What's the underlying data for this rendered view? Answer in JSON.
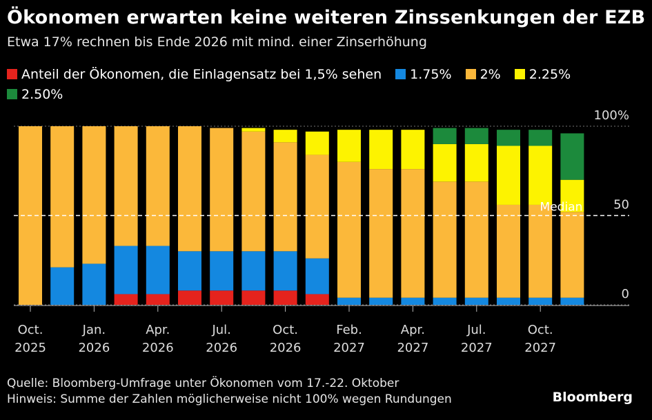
{
  "brand": "Bloomberg",
  "source_note": "Quelle: Bloomberg-Umfrage unter Ökonomen vom 17.-22. Oktober",
  "hint_note": "Hinweis: Summe der Zahlen möglicherweise nicht 100% wegen Rundungen",
  "chart_data": {
    "type": "bar",
    "stacked": true,
    "title": "Ökonomen erwarten keine weiteren Zinssenkungen der EZB",
    "subtitle": "Etwa 17% rechnen bis Ende 2026 mit mind. einer Zinserhöhung",
    "xlabel": "",
    "ylabel": "",
    "ylim": [
      0,
      100
    ],
    "yticks": [
      {
        "value": 0,
        "label": "0"
      },
      {
        "value": 50,
        "label": "50"
      },
      {
        "value": 100,
        "label": "100%"
      }
    ],
    "median_line": {
      "value": 50,
      "label": "Median"
    },
    "categories": [
      "Oct 2025",
      "Dec 2025",
      "Jan 2026",
      "Mar 2026",
      "Apr 2026",
      "Jun 2026",
      "Jul 2026",
      "Sep 2026",
      "Oct 2026",
      "Dec 2026",
      "Feb 2027",
      "Mar 2027",
      "Apr 2027",
      "Jun 2027",
      "Jul 2027",
      "Sep 2027",
      "Oct 2027",
      "Dec 2027"
    ],
    "x_tick_labels": [
      {
        "index": 0,
        "line1": "Oct.",
        "line2": "2025"
      },
      {
        "index": 2,
        "line1": "Jan.",
        "line2": "2026"
      },
      {
        "index": 4,
        "line1": "Apr.",
        "line2": "2026"
      },
      {
        "index": 6,
        "line1": "Jul.",
        "line2": "2026"
      },
      {
        "index": 8,
        "line1": "Oct.",
        "line2": "2026"
      },
      {
        "index": 10,
        "line1": "Feb.",
        "line2": "2027"
      },
      {
        "index": 12,
        "line1": "Apr.",
        "line2": "2027"
      },
      {
        "index": 14,
        "line1": "Jul.",
        "line2": "2027"
      },
      {
        "index": 16,
        "line1": "Oct.",
        "line2": "2027"
      }
    ],
    "series": [
      {
        "name": "Anteil der Ökonomen, die Einlagensatz bei 1,5% sehen",
        "color": "#e5231d",
        "values": [
          0,
          0,
          0,
          6,
          6,
          8,
          8,
          8,
          8,
          6,
          0,
          0,
          0,
          0,
          0,
          0,
          0,
          0
        ]
      },
      {
        "name": "1.75%",
        "color": "#1488e0",
        "values": [
          0,
          21,
          23,
          27,
          27,
          22,
          22,
          22,
          22,
          20,
          4,
          4,
          4,
          4,
          4,
          4,
          4,
          4
        ]
      },
      {
        "name": "2%",
        "color": "#fbb83a",
        "values": [
          100,
          79,
          77,
          67,
          67,
          70,
          69,
          67,
          61,
          58,
          76,
          72,
          72,
          65,
          65,
          52,
          52,
          48
        ]
      },
      {
        "name": "2.25%",
        "color": "#fdf300",
        "values": [
          0,
          0,
          0,
          0,
          0,
          0,
          0,
          2,
          7,
          13,
          18,
          22,
          22,
          21,
          21,
          33,
          33,
          18
        ]
      },
      {
        "name": "2.50%",
        "color": "#1c8a3c",
        "values": [
          0,
          0,
          0,
          0,
          0,
          0,
          0,
          0,
          0,
          0,
          0,
          0,
          0,
          9,
          9,
          9,
          9,
          26
        ]
      }
    ]
  }
}
